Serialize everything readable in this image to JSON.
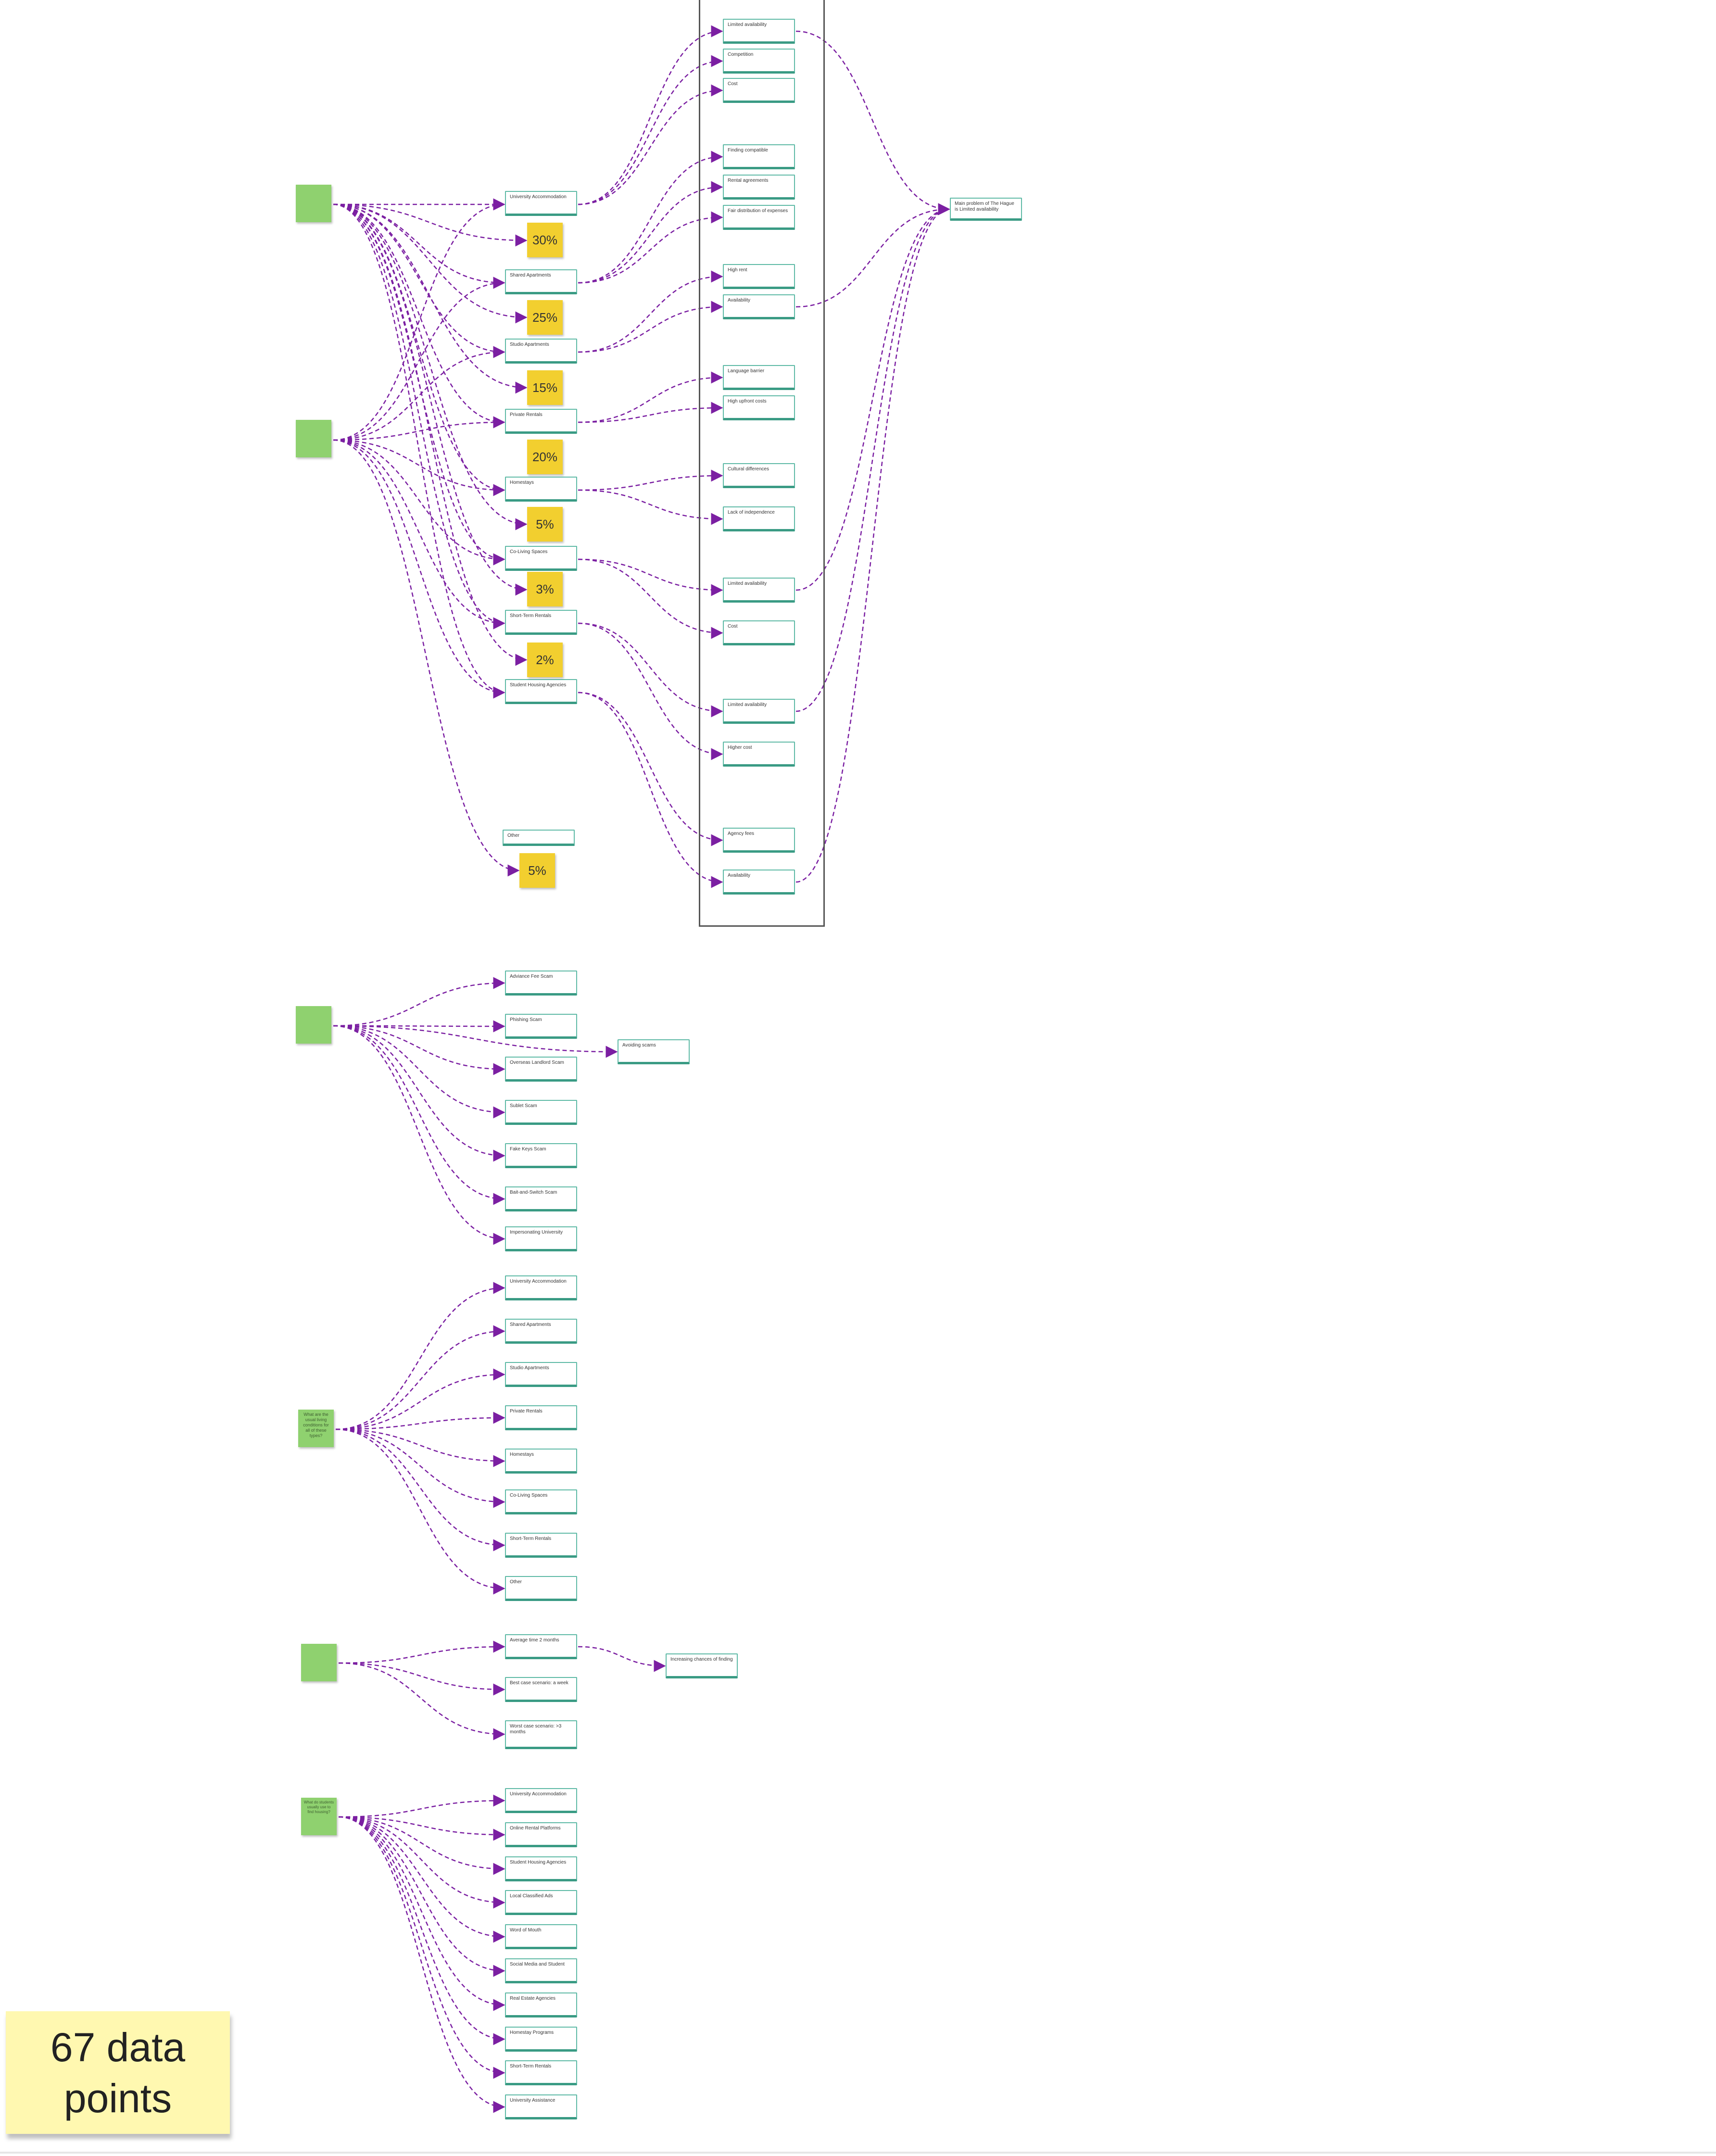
{
  "pct_labels": [
    "30%",
    "25%",
    "15%",
    "20%",
    "5%",
    "3%",
    "2%",
    "5%"
  ],
  "cluster1": {
    "accommodation_types": [
      "University Accommodation",
      "Shared Apartments",
      "Studio Apartments",
      "Private Rentals",
      "Homestays",
      "Co-Living Spaces",
      "Short-Term Rentals",
      "Student Housing Agencies",
      "Other"
    ],
    "challenges": [
      "Limited availability",
      "Competition",
      "Cost",
      "Finding compatible",
      "Rental agreements",
      "Fair distribution of expenses",
      "High rent",
      "Availability",
      "Language barrier",
      "High upfront costs",
      "Cultural differences",
      "Lack of independence",
      "Limited availability",
      "Cost",
      "Limited availability",
      "Higher cost",
      "Agency fees",
      "Availability"
    ],
    "summary": "Main problem of The Hague is Limited availability"
  },
  "cluster2": {
    "universities": [
      "Adviance Fee Scam",
      "Phishing Scam",
      "Overseas Landlord Scam",
      "Sublet Scam",
      "Fake Keys Scam",
      "Bait-and-Switch Scam",
      "Impersonating University"
    ],
    "extra": "Avoiding scams"
  },
  "cluster3": {
    "question": "What are the usual living conditions for all of these types?",
    "types": [
      "University Accommodation",
      "Shared Apartments",
      "Studio Apartments",
      "Private Rentals",
      "Homestays",
      "Co-Living Spaces",
      "Short-Term Rentals",
      "Other"
    ]
  },
  "cluster4": {
    "durations": [
      "Average time 2 months",
      "Best case scenario: a week",
      "Worst case scenario: >3 months"
    ],
    "extra": "Increasing chances of finding"
  },
  "cluster5": {
    "question": "What do students usually use to find housing?",
    "platforms": [
      "University Accommodation",
      "Online Rental Platforms",
      "Student Housing Agencies",
      "Local Classified Ads",
      "Word of Mouth",
      "Social Media and Student",
      "Real Estate Agencies",
      "Homestay Programs",
      "Short-Term Rentals",
      "University Assistance"
    ]
  },
  "data_points_label": "67 data points",
  "colors": {
    "connector": "#7b1fa2",
    "node_border": "#5fbaa6",
    "sticky_green": "#8fd16f",
    "sticky_yellow": "#f2cf2f",
    "counter_bg": "#fff8b0"
  },
  "icons": [
    "arrow-head-icon"
  ]
}
